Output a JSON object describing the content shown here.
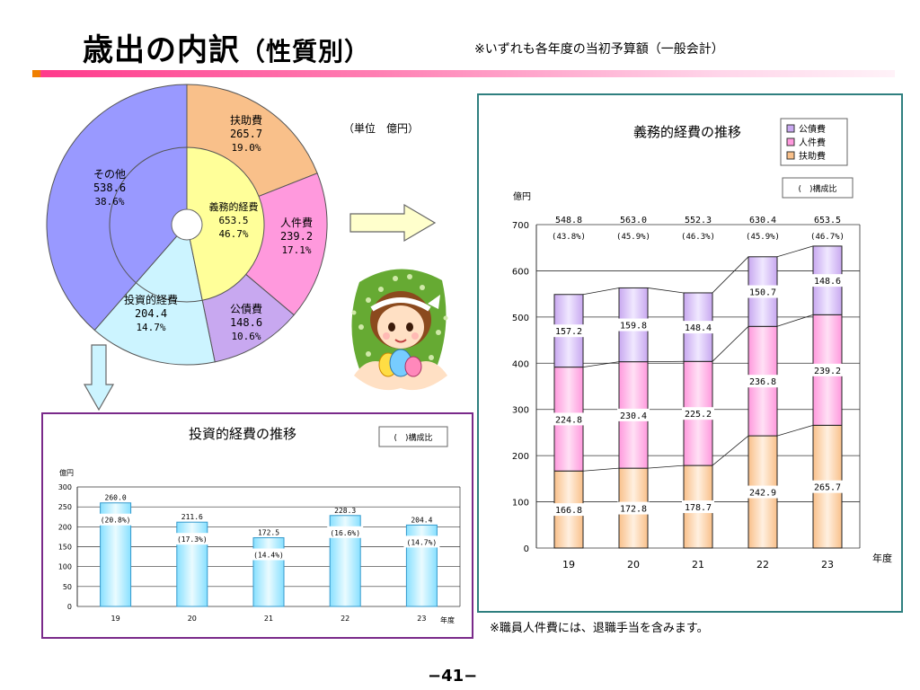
{
  "header": {
    "title_main": "歳出の内訳",
    "title_paren": "（性質別）",
    "note": "※いずれも各年度の当初予算額（一般会計）"
  },
  "unit_label": "（単位　億円）",
  "footnote": "※職員人件費には、退職手当を含みます。",
  "page_number": "−41−",
  "colors": {
    "fusuke": "#f9c08a",
    "jinken": "#ff99dd",
    "kosai": "#c8a8f0",
    "toushi": "#ccf4ff",
    "sonota": "#9999ff",
    "gimu": "#ffff99",
    "teal_border": "#2f7f7f",
    "purple_border": "#7a2a8a"
  },
  "chart_data": [
    {
      "type": "pie",
      "segments": [
        {
          "name": "扶助費",
          "value": "265.7",
          "share": "19.0%"
        },
        {
          "name": "人件費",
          "value": "239.2",
          "share": "17.1%"
        },
        {
          "name": "公債費",
          "value": "148.6",
          "share": "10.6%"
        },
        {
          "name": "投資的経費",
          "value": "204.4",
          "share": "14.7%"
        },
        {
          "name": "その他",
          "value": "538.6",
          "share": "38.6%"
        }
      ],
      "inner_segment": {
        "name": "義務的経費",
        "value": "653.5",
        "share": "46.7%"
      }
    },
    {
      "type": "bar",
      "stacked": true,
      "title": "義務的経費の推移",
      "ylabel": "億円",
      "xlabel": "年度",
      "ylim": [
        0,
        700
      ],
      "yticks": [
        0,
        100,
        200,
        300,
        400,
        500,
        600,
        700
      ],
      "categories": [
        "19",
        "20",
        "21",
        "22",
        "23"
      ],
      "legend": {
        "placement": "top-right",
        "items": [
          "公債費",
          "人件費",
          "扶助費"
        ]
      },
      "ratio_legend": "(　)構成比",
      "series": [
        {
          "name": "扶助費",
          "values": [
            166.8,
            172.8,
            178.7,
            242.9,
            265.7
          ]
        },
        {
          "name": "人件費",
          "values": [
            224.8,
            230.4,
            225.2,
            236.8,
            239.2
          ]
        },
        {
          "name": "公債費",
          "values": [
            157.2,
            159.8,
            148.4,
            150.7,
            148.6
          ]
        }
      ],
      "totals": [
        "548.8",
        "563.0",
        "552.3",
        "630.4",
        "653.5"
      ],
      "shares": [
        "(43.8%)",
        "(45.9%)",
        "(46.3%)",
        "(45.9%)",
        "(46.7%)"
      ]
    },
    {
      "type": "bar",
      "title": "投資的経費の推移",
      "ylabel": "億円",
      "xlabel": "年度",
      "ylim": [
        0,
        300
      ],
      "yticks": [
        0,
        50,
        100,
        150,
        200,
        250,
        300
      ],
      "categories": [
        "19",
        "20",
        "21",
        "22",
        "23"
      ],
      "ratio_legend": "(　)構成比",
      "values": [
        260.0,
        211.6,
        172.5,
        228.3,
        204.4
      ],
      "value_labels": [
        "260.0",
        "211.6",
        "172.5",
        "228.3",
        "204.4"
      ],
      "shares": [
        "(20.8%)",
        "(17.3%)",
        "(14.4%)",
        "(16.6%)",
        "(14.7%)"
      ]
    }
  ]
}
